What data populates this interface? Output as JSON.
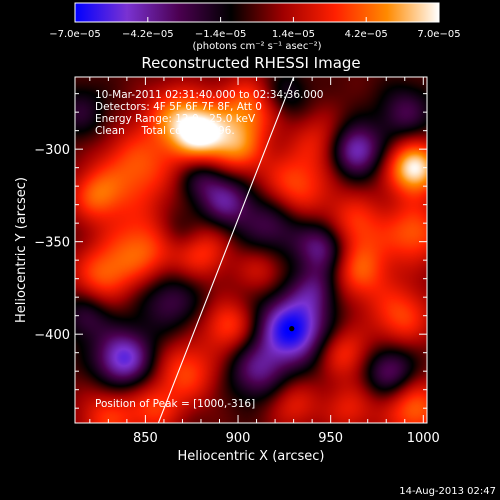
{
  "chart_data": {
    "type": "heatmap",
    "title": "Reconstructed RHESSI Image",
    "xlabel": "Heliocentric X (arcsec)",
    "ylabel": "Heliocentric Y (arcsec)",
    "xlim": [
      812,
      1002
    ],
    "ylim": [
      -448,
      -261
    ],
    "x_ticks": [
      850,
      900,
      950,
      1000
    ],
    "x_tick_labels": [
      "850",
      "900",
      "950",
      "1000"
    ],
    "y_ticks": [
      -300,
      -350,
      -400
    ],
    "y_tick_labels": [
      "−300",
      "−350",
      "−400"
    ],
    "colorbar": {
      "range": [
        -7e-05,
        7e-05
      ],
      "ticks": [
        -7e-05,
        -4.2e-05,
        -1.4e-05,
        1.4e-05,
        4.2e-05,
        7e-05
      ],
      "tick_labels": [
        "−7.0e−05",
        "−4.2e−05",
        "−1.4e−05",
        "1.4e−05",
        "4.2e−05",
        "7.0e−05"
      ],
      "units_label": "(photons cm⁻² s⁻¹ asec⁻²)",
      "colors": [
        "#0000ff",
        "#7a32d2",
        "#4b0050",
        "#000000",
        "#a00000",
        "#ff2000",
        "#ff8a00",
        "#ffffff"
      ]
    },
    "annotations": [
      "10-Mar-2011 02:31:40.000 to 02:34:36.000",
      "Detectors: 4F 5F 6F 7F 8F, Att 0",
      "Energy Range: 12.0 - 25.0 keV",
      "Clean     Total counts: 496."
    ],
    "peak_label": "Position of Peak = [1000,-316]",
    "limb_line": [
      [
        857,
        -448
      ],
      [
        930,
        -261
      ]
    ],
    "min_marker": [
      929,
      -397
    ],
    "blobs": [
      {
        "x": 880,
        "y": -292,
        "v": 0.9,
        "s": 11
      },
      {
        "x": 866,
        "y": -282,
        "v": 0.55,
        "s": 12
      },
      {
        "x": 905,
        "y": -278,
        "v": 0.6,
        "s": 12
      },
      {
        "x": 900,
        "y": -300,
        "v": 0.5,
        "s": 10
      },
      {
        "x": 845,
        "y": -310,
        "v": 0.55,
        "s": 15
      },
      {
        "x": 823,
        "y": -325,
        "v": 0.5,
        "s": 10
      },
      {
        "x": 848,
        "y": -355,
        "v": 0.6,
        "s": 15
      },
      {
        "x": 825,
        "y": -368,
        "v": 0.45,
        "s": 11
      },
      {
        "x": 880,
        "y": -355,
        "v": 0.45,
        "s": 11
      },
      {
        "x": 895,
        "y": -395,
        "v": 0.5,
        "s": 10
      },
      {
        "x": 872,
        "y": -420,
        "v": 0.5,
        "s": 12
      },
      {
        "x": 855,
        "y": -440,
        "v": 0.4,
        "s": 10
      },
      {
        "x": 830,
        "y": -445,
        "v": 0.45,
        "s": 12
      },
      {
        "x": 930,
        "y": -320,
        "v": 0.55,
        "s": 13
      },
      {
        "x": 962,
        "y": -340,
        "v": 0.45,
        "s": 12
      },
      {
        "x": 945,
        "y": -295,
        "v": 0.35,
        "s": 11
      },
      {
        "x": 965,
        "y": -365,
        "v": 0.55,
        "s": 12
      },
      {
        "x": 995,
        "y": -310,
        "v": 1.0,
        "s": 10
      },
      {
        "x": 995,
        "y": -345,
        "v": 0.55,
        "s": 12
      },
      {
        "x": 988,
        "y": -390,
        "v": 0.5,
        "s": 12
      },
      {
        "x": 957,
        "y": -410,
        "v": 0.45,
        "s": 10
      },
      {
        "x": 995,
        "y": -440,
        "v": 0.6,
        "s": 12
      },
      {
        "x": 960,
        "y": -440,
        "v": 0.35,
        "s": 10
      },
      {
        "x": 930,
        "y": -438,
        "v": 0.35,
        "s": 10
      },
      {
        "x": 912,
        "y": -365,
        "v": 0.3,
        "s": 9
      },
      {
        "x": 929,
        "y": -397,
        "v": -1.0,
        "s": 13
      },
      {
        "x": 838,
        "y": -413,
        "v": -0.8,
        "s": 11
      },
      {
        "x": 946,
        "y": -353,
        "v": -0.65,
        "s": 10
      },
      {
        "x": 963,
        "y": -300,
        "v": -0.75,
        "s": 10
      },
      {
        "x": 893,
        "y": -328,
        "v": -0.55,
        "s": 10
      },
      {
        "x": 880,
        "y": -315,
        "v": -0.35,
        "s": 9
      },
      {
        "x": 918,
        "y": -340,
        "v": -0.45,
        "s": 12
      },
      {
        "x": 862,
        "y": -380,
        "v": -0.45,
        "s": 12
      },
      {
        "x": 910,
        "y": -420,
        "v": -0.5,
        "s": 11
      },
      {
        "x": 982,
        "y": -420,
        "v": -0.55,
        "s": 10
      },
      {
        "x": 990,
        "y": -280,
        "v": -0.4,
        "s": 10
      },
      {
        "x": 868,
        "y": -345,
        "v": -0.3,
        "s": 9
      },
      {
        "x": 925,
        "y": -270,
        "v": -0.3,
        "s": 9
      },
      {
        "x": 815,
        "y": -280,
        "v": -0.3,
        "s": 10
      },
      {
        "x": 942,
        "y": -375,
        "v": -0.4,
        "s": 9
      },
      {
        "x": 818,
        "y": -390,
        "v": -0.35,
        "s": 9
      }
    ]
  },
  "footer": {
    "date_stamp": "14-Aug-2013 02:47"
  }
}
